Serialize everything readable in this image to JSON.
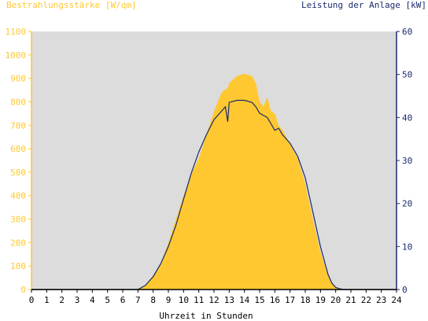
{
  "chart_data": {
    "type": "area",
    "title": "",
    "ylabel_left": "Bestrahlungsstärke [W/qm]",
    "ylabel_right": "Leistung der Anlage [kW]",
    "xlabel": "Uhrzeit in Stunden",
    "xlim": [
      0,
      24
    ],
    "ylim_left": [
      0,
      1100
    ],
    "ylim_right": [
      0,
      60
    ],
    "x_ticks": [
      "0",
      "1",
      "2",
      "3",
      "4",
      "5",
      "6",
      "7",
      "8",
      "9",
      "10",
      "11",
      "12",
      "13",
      "14",
      "15",
      "16",
      "17",
      "18",
      "19",
      "20",
      "21",
      "22",
      "23",
      "24"
    ],
    "y_ticks_left": [
      "0",
      "100",
      "200",
      "300",
      "400",
      "500",
      "600",
      "700",
      "800",
      "900",
      "1000",
      "1100"
    ],
    "y_ticks_right": [
      "0",
      "10",
      "20",
      "30",
      "40",
      "50",
      "60"
    ],
    "grid": false,
    "colors": {
      "plot_background": "#dcdcdc",
      "irradiance_fill": "#ffc830",
      "power_line": "#1a2a6c",
      "left_axis": "#ffc830",
      "right_axis": "#1a2a6c"
    },
    "series": [
      {
        "name": "Bestrahlungsstärke [W/qm]",
        "axis": "left",
        "kind": "area",
        "x": [
          0,
          7.0,
          7.25,
          7.5,
          7.75,
          8.0,
          8.5,
          9.0,
          9.5,
          10.0,
          10.5,
          11.0,
          11.5,
          12.0,
          12.5,
          12.9,
          13.0,
          13.5,
          14.0,
          14.5,
          14.75,
          15.0,
          15.25,
          15.5,
          15.75,
          16.0,
          16.25,
          16.5,
          17.0,
          17.5,
          18.0,
          18.5,
          19.0,
          19.5,
          19.75,
          20.0,
          20.25,
          20.5,
          24
        ],
        "y": [
          0,
          0,
          10,
          20,
          40,
          60,
          110,
          200,
          300,
          400,
          490,
          560,
          660,
          760,
          840,
          860,
          880,
          910,
          920,
          910,
          880,
          800,
          780,
          820,
          760,
          750,
          700,
          680,
          620,
          560,
          450,
          300,
          160,
          60,
          25,
          10,
          3,
          0,
          0
        ]
      },
      {
        "name": "Leistung der Anlage [kW]",
        "axis": "right",
        "kind": "line",
        "x": [
          0,
          7.0,
          7.5,
          7.75,
          8.0,
          8.5,
          9.0,
          9.5,
          10.0,
          10.5,
          11.0,
          11.5,
          12.0,
          12.5,
          12.75,
          12.9,
          13.0,
          13.5,
          14.0,
          14.5,
          14.75,
          15.0,
          15.25,
          15.5,
          15.75,
          16.0,
          16.25,
          16.5,
          17.0,
          17.5,
          18.0,
          18.5,
          19.0,
          19.5,
          19.75,
          20.0,
          20.25,
          20.5,
          24
        ],
        "y": [
          0,
          0,
          1,
          2,
          3,
          6,
          10,
          15,
          21,
          27,
          32,
          36,
          39.5,
          41.5,
          42.5,
          39,
          43.5,
          44,
          44,
          43.5,
          42.5,
          41,
          40.5,
          40,
          38.5,
          37,
          37.5,
          36,
          34,
          31,
          26,
          18,
          10,
          3.5,
          1.5,
          0.5,
          0.2,
          0,
          0
        ]
      }
    ]
  }
}
